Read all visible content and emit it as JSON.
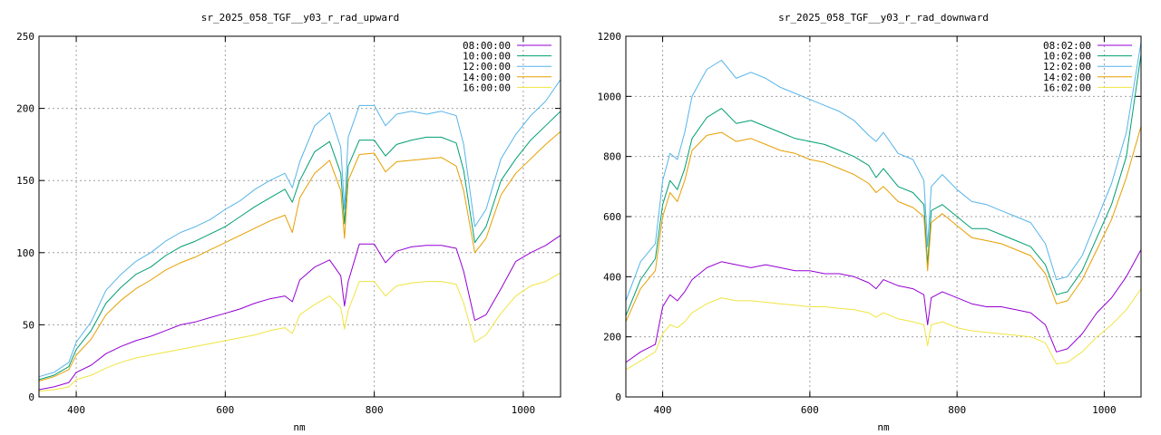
{
  "chart_data": [
    {
      "type": "line",
      "title": "sr_2025_058_TGF__y03_r_rad_upward",
      "xlabel": "nm",
      "ylabel": "",
      "xlim": [
        350,
        1050
      ],
      "ylim": [
        0,
        250
      ],
      "xticks": [
        400,
        600,
        800,
        1000
      ],
      "yticks": [
        0,
        50,
        100,
        150,
        200,
        250
      ],
      "grid": true,
      "legend_position": "top-right",
      "x": [
        350,
        370,
        390,
        400,
        420,
        440,
        460,
        480,
        500,
        520,
        540,
        560,
        580,
        600,
        620,
        640,
        660,
        680,
        690,
        700,
        720,
        740,
        755,
        760,
        765,
        780,
        800,
        815,
        830,
        850,
        870,
        890,
        910,
        920,
        935,
        950,
        970,
        990,
        1010,
        1030,
        1050
      ],
      "series": [
        {
          "name": "08:00:00",
          "color": "#9400d3",
          "values": [
            5,
            7,
            10,
            17,
            22,
            30,
            35,
            39,
            42,
            46,
            50,
            52,
            55,
            58,
            61,
            65,
            68,
            70,
            66,
            81,
            90,
            95,
            84,
            63,
            80,
            106,
            106,
            93,
            101,
            104,
            105,
            105,
            103,
            87,
            53,
            57,
            75,
            94,
            100,
            105,
            112
          ]
        },
        {
          "name": "10:00:00",
          "color": "#009e73",
          "values": [
            12,
            15,
            21,
            33,
            46,
            65,
            76,
            85,
            90,
            98,
            104,
            108,
            113,
            118,
            125,
            132,
            138,
            144,
            135,
            150,
            170,
            177,
            155,
            120,
            160,
            178,
            178,
            167,
            175,
            178,
            180,
            180,
            176,
            157,
            107,
            118,
            150,
            165,
            178,
            188,
            198
          ]
        },
        {
          "name": "12:00:00",
          "color": "#56b4e9",
          "values": [
            14,
            17,
            24,
            38,
            52,
            74,
            85,
            94,
            100,
            108,
            114,
            118,
            123,
            130,
            136,
            144,
            150,
            155,
            145,
            163,
            188,
            197,
            173,
            130,
            180,
            202,
            202,
            188,
            196,
            198,
            196,
            198,
            195,
            175,
            118,
            130,
            165,
            182,
            195,
            205,
            220
          ]
        },
        {
          "name": "14:00:00",
          "color": "#e69f00",
          "values": [
            11,
            14,
            19,
            29,
            40,
            57,
            67,
            75,
            81,
            88,
            93,
            97,
            102,
            107,
            112,
            117,
            122,
            126,
            114,
            138,
            155,
            164,
            143,
            110,
            150,
            168,
            169,
            156,
            163,
            164,
            165,
            166,
            160,
            143,
            100,
            110,
            140,
            155,
            165,
            175,
            184
          ]
        },
        {
          "name": "16:00:00",
          "color": "#f0e442",
          "values": [
            4,
            5,
            7,
            12,
            15,
            20,
            24,
            27,
            29,
            31,
            33,
            35,
            37,
            39,
            41,
            43,
            46,
            48,
            44,
            57,
            64,
            70,
            62,
            47,
            60,
            80,
            80,
            70,
            77,
            79,
            80,
            80,
            78,
            65,
            38,
            43,
            58,
            70,
            77,
            80,
            86
          ]
        }
      ]
    },
    {
      "type": "line",
      "title": "sr_2025_058_TGF__y03_r_rad_downward",
      "xlabel": "nm",
      "ylabel": "",
      "xlim": [
        350,
        1050
      ],
      "ylim": [
        0,
        1200
      ],
      "xticks": [
        400,
        600,
        800,
        1000
      ],
      "yticks": [
        0,
        200,
        400,
        600,
        800,
        1000,
        1200
      ],
      "grid": true,
      "legend_position": "top-right",
      "x": [
        350,
        370,
        390,
        400,
        410,
        420,
        430,
        440,
        460,
        480,
        500,
        520,
        540,
        560,
        580,
        600,
        620,
        640,
        660,
        680,
        690,
        700,
        720,
        740,
        755,
        760,
        765,
        780,
        800,
        820,
        840,
        860,
        880,
        900,
        920,
        935,
        950,
        970,
        990,
        1010,
        1030,
        1050
      ],
      "series": [
        {
          "name": "08:02:00",
          "color": "#9400d3",
          "values": [
            115,
            150,
            175,
            300,
            340,
            320,
            350,
            390,
            430,
            450,
            440,
            430,
            440,
            430,
            420,
            420,
            410,
            410,
            400,
            380,
            360,
            390,
            370,
            360,
            340,
            240,
            330,
            350,
            330,
            310,
            300,
            300,
            290,
            280,
            240,
            150,
            160,
            210,
            280,
            330,
            400,
            490
          ]
        },
        {
          "name": "10:02:00",
          "color": "#009e73",
          "values": [
            270,
            390,
            460,
            640,
            720,
            690,
            760,
            860,
            930,
            960,
            910,
            920,
            900,
            880,
            860,
            850,
            840,
            820,
            800,
            770,
            730,
            760,
            700,
            680,
            640,
            440,
            620,
            640,
            600,
            560,
            560,
            540,
            520,
            500,
            440,
            340,
            350,
            420,
            530,
            640,
            800,
            1140
          ]
        },
        {
          "name": "12:02:00",
          "color": "#56b4e9",
          "values": [
            320,
            450,
            510,
            720,
            810,
            790,
            880,
            1000,
            1090,
            1120,
            1060,
            1080,
            1060,
            1030,
            1010,
            990,
            970,
            950,
            920,
            870,
            850,
            880,
            810,
            790,
            720,
            500,
            700,
            740,
            690,
            650,
            640,
            620,
            600,
            580,
            510,
            390,
            400,
            470,
            590,
            710,
            880,
            1180
          ]
        },
        {
          "name": "14:02:00",
          "color": "#e69f00",
          "values": [
            250,
            360,
            420,
            600,
            680,
            650,
            720,
            820,
            870,
            880,
            850,
            860,
            840,
            820,
            810,
            790,
            780,
            760,
            740,
            710,
            680,
            700,
            650,
            630,
            600,
            420,
            580,
            610,
            570,
            530,
            520,
            510,
            490,
            470,
            410,
            310,
            320,
            390,
            490,
            590,
            730,
            900
          ]
        },
        {
          "name": "16:02:00",
          "color": "#f0e442",
          "values": [
            90,
            120,
            150,
            210,
            240,
            230,
            250,
            280,
            310,
            330,
            320,
            320,
            315,
            310,
            305,
            300,
            300,
            295,
            290,
            280,
            265,
            280,
            260,
            250,
            240,
            170,
            240,
            250,
            230,
            220,
            215,
            210,
            205,
            200,
            180,
            110,
            115,
            150,
            200,
            240,
            290,
            360
          ]
        }
      ]
    }
  ]
}
